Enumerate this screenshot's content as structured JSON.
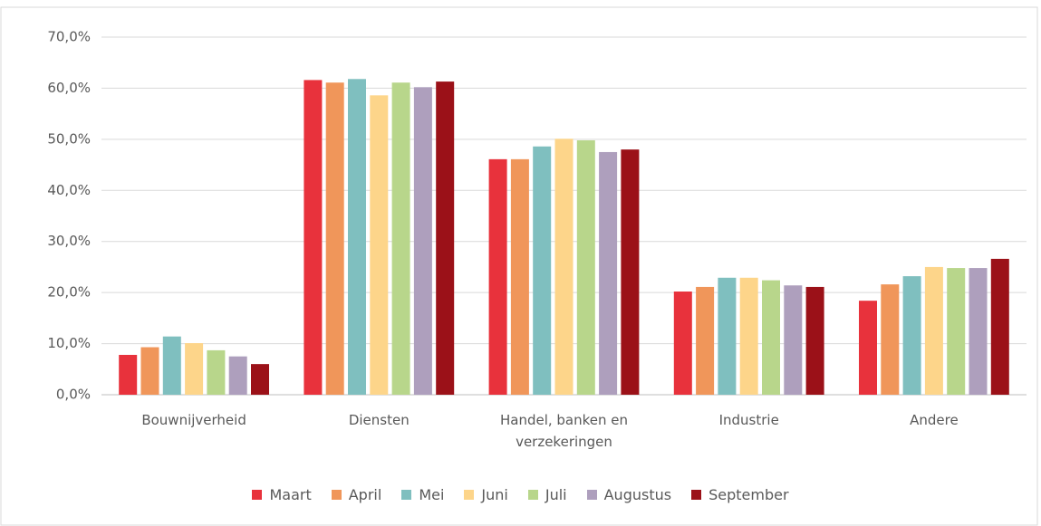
{
  "chart_data": {
    "type": "bar",
    "categories": [
      "Bouwnijverheid",
      "Diensten",
      "Handel, banken en verzekeringen",
      "Industrie",
      "Andere"
    ],
    "series": [
      {
        "name": "Maart",
        "color": "#e8323c",
        "values": [
          7.8,
          61.6,
          46.1,
          20.2,
          18.4
        ]
      },
      {
        "name": "April",
        "color": "#f0965a",
        "values": [
          9.3,
          61.1,
          46.1,
          21.1,
          21.6
        ]
      },
      {
        "name": "Mei",
        "color": "#7fbfbf",
        "values": [
          11.4,
          61.8,
          48.6,
          22.9,
          23.2
        ]
      },
      {
        "name": "Juni",
        "color": "#fdd58a",
        "values": [
          10.1,
          58.6,
          50.1,
          22.9,
          25.0
        ]
      },
      {
        "name": "Juli",
        "color": "#b8d68b",
        "values": [
          8.7,
          61.1,
          49.8,
          22.4,
          24.8
        ]
      },
      {
        "name": "Augustus",
        "color": "#ae9fbd",
        "values": [
          7.5,
          60.2,
          47.5,
          21.4,
          24.8
        ]
      },
      {
        "name": "September",
        "color": "#9b1118",
        "values": [
          6.0,
          61.3,
          48.0,
          21.1,
          26.6
        ]
      }
    ],
    "ylim": [
      0,
      70
    ],
    "yticks": [
      {
        "value": 0,
        "label": "0,0%"
      },
      {
        "value": 10,
        "label": "10,0%"
      },
      {
        "value": 20,
        "label": "20,0%"
      },
      {
        "value": 30,
        "label": "30,0%"
      },
      {
        "value": 40,
        "label": "40,0%"
      },
      {
        "value": 50,
        "label": "50,0%"
      },
      {
        "value": 60,
        "label": "60,0%"
      },
      {
        "value": 70,
        "label": "70,0%"
      }
    ],
    "grid": true,
    "legend": "bottom"
  }
}
